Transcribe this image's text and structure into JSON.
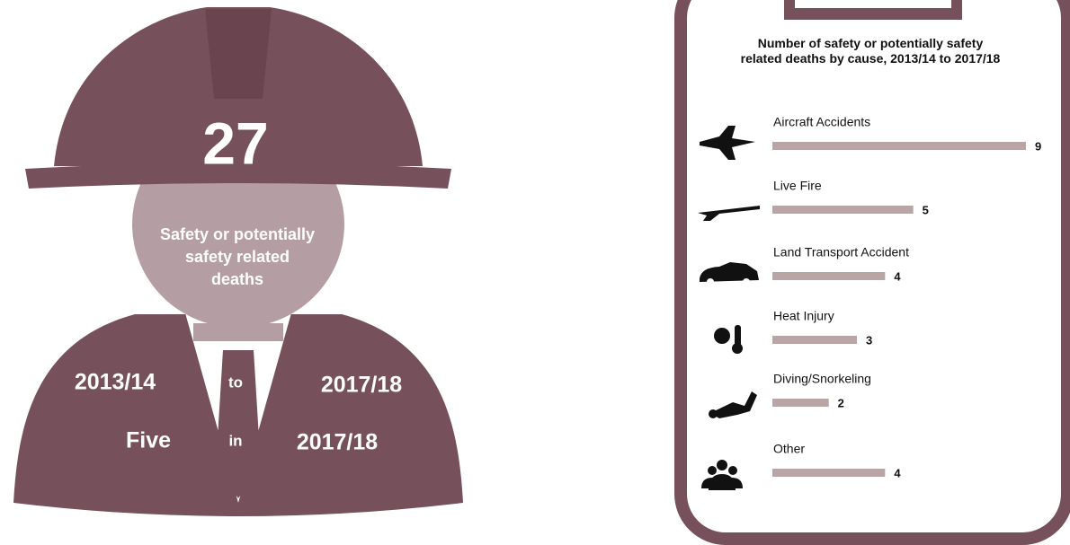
{
  "infographic": {
    "total": "27",
    "caption": [
      "Safety or potentially",
      "safety related",
      "deaths"
    ],
    "from_year": "2013/14",
    "to_word": "to",
    "to_year": "2017/18",
    "count_word": "Five",
    "in_word": "in",
    "in_year": "2017/18"
  },
  "chart_data": {
    "type": "bar",
    "orientation": "horizontal",
    "title": "Number of safety or potentially safety related deaths by cause, 2013/14 to 2017/18",
    "categories": [
      "Aircraft Accidents",
      "Live Fire",
      "Land Transport Accident",
      "Heat Injury",
      "Diving/Snorkeling",
      "Other"
    ],
    "values": [
      9,
      5,
      4,
      3,
      2,
      4
    ],
    "color": "#b9a4a6"
  }
}
